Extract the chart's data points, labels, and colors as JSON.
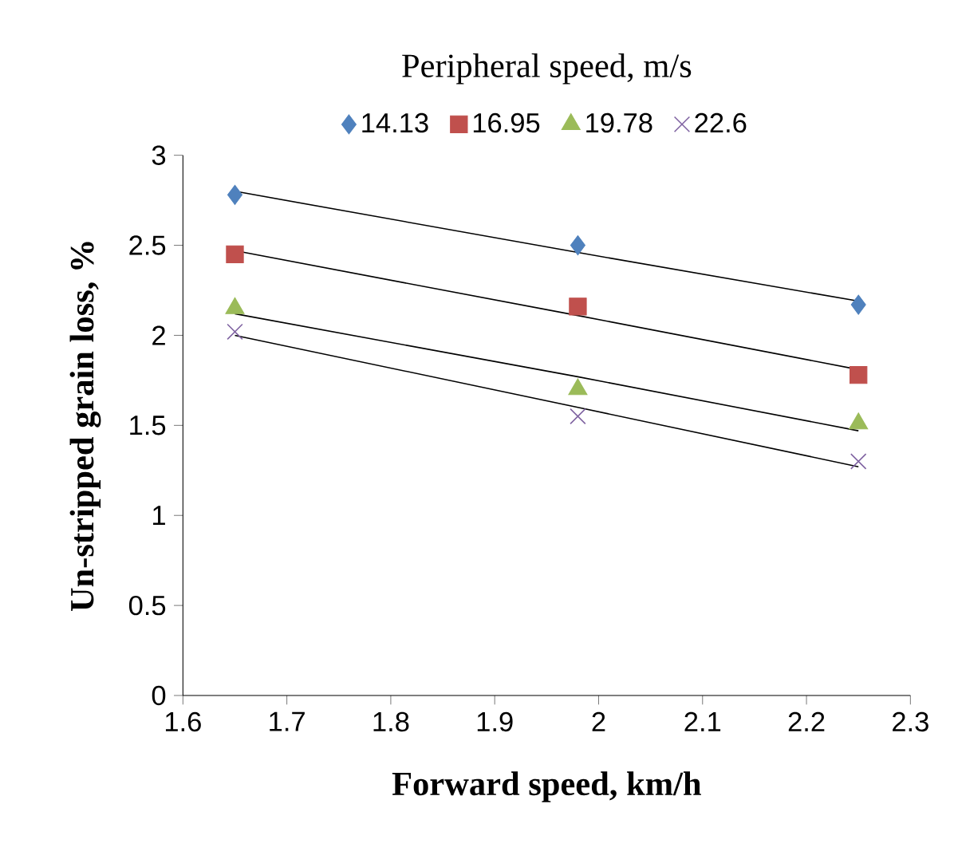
{
  "chart_data": {
    "type": "scatter",
    "legend_title": "Peripheral speed, m/s",
    "xlabel": "Forward speed, km/h",
    "ylabel": "Un-stripped grain loss, %",
    "xlim": [
      1.6,
      2.3
    ],
    "xticks": [
      1.6,
      1.7,
      1.8,
      1.9,
      2,
      2.1,
      2.2,
      2.3
    ],
    "ylim": [
      0,
      3
    ],
    "yticks": [
      0,
      0.5,
      1,
      1.5,
      2,
      2.5,
      3
    ],
    "grid": false,
    "legend": "top",
    "x": [
      1.65,
      1.98,
      2.25
    ],
    "series": [
      {
        "name": "14.13",
        "color": "#4f81bd",
        "marker": "diamond",
        "values": [
          2.78,
          2.5,
          2.17
        ]
      },
      {
        "name": "16.95",
        "color": "#c0504d",
        "marker": "square",
        "values": [
          2.45,
          2.16,
          1.78
        ]
      },
      {
        "name": "19.78",
        "color": "#9bbb59",
        "marker": "triangle",
        "values": [
          2.15,
          1.7,
          1.51
        ]
      },
      {
        "name": "22.6",
        "color": "#8064a2",
        "marker": "cross",
        "values": [
          2.02,
          1.55,
          1.3
        ]
      },
      {
        "type": "line",
        "color": "#000000",
        "marker": "none",
        "values": [
          2.8,
          2.46,
          2.19
        ]
      },
      {
        "type": "line",
        "color": "#000000",
        "marker": "none",
        "values": [
          2.47,
          2.11,
          1.81
        ]
      },
      {
        "type": "line",
        "color": "#000000",
        "marker": "none",
        "values": [
          2.12,
          1.77,
          1.47
        ]
      },
      {
        "type": "line",
        "color": "#000000",
        "marker": "none",
        "values": [
          2.0,
          1.6,
          1.27
        ]
      }
    ]
  }
}
